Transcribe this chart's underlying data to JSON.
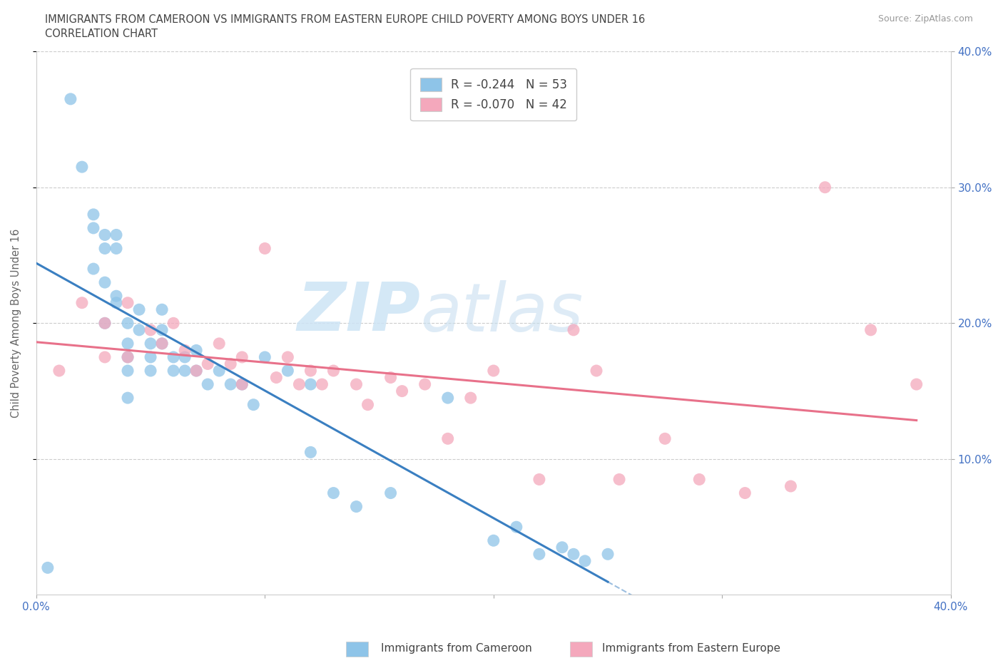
{
  "title_line1": "IMMIGRANTS FROM CAMEROON VS IMMIGRANTS FROM EASTERN EUROPE CHILD POVERTY AMONG BOYS UNDER 16",
  "title_line2": "CORRELATION CHART",
  "source": "Source: ZipAtlas.com",
  "ylabel": "Child Poverty Among Boys Under 16",
  "xlim": [
    0.0,
    0.4
  ],
  "ylim": [
    0.0,
    0.4
  ],
  "xticks": [
    0.0,
    0.1,
    0.2,
    0.3,
    0.4
  ],
  "yticks": [
    0.1,
    0.2,
    0.3,
    0.4
  ],
  "watermark_zip": "ZIP",
  "watermark_atlas": "atlas",
  "legend_R1": "-0.244",
  "legend_N1": "53",
  "legend_R2": "-0.070",
  "legend_N2": "42",
  "color_blue": "#8ec4e8",
  "color_pink": "#f4a8bc",
  "color_blue_line": "#3a7fc1",
  "color_pink_line": "#e8718a",
  "color_blue_label": "#4472c4",
  "blue_scatter_x": [
    0.005,
    0.015,
    0.02,
    0.025,
    0.025,
    0.025,
    0.03,
    0.03,
    0.03,
    0.03,
    0.035,
    0.035,
    0.035,
    0.035,
    0.04,
    0.04,
    0.04,
    0.04,
    0.04,
    0.045,
    0.045,
    0.05,
    0.05,
    0.05,
    0.055,
    0.055,
    0.055,
    0.06,
    0.06,
    0.065,
    0.065,
    0.07,
    0.07,
    0.075,
    0.08,
    0.085,
    0.09,
    0.095,
    0.1,
    0.11,
    0.12,
    0.12,
    0.13,
    0.14,
    0.155,
    0.18,
    0.2,
    0.21,
    0.22,
    0.23,
    0.235,
    0.24,
    0.25
  ],
  "blue_scatter_y": [
    0.02,
    0.365,
    0.315,
    0.28,
    0.27,
    0.24,
    0.265,
    0.255,
    0.23,
    0.2,
    0.265,
    0.255,
    0.22,
    0.215,
    0.2,
    0.185,
    0.175,
    0.145,
    0.165,
    0.21,
    0.195,
    0.185,
    0.175,
    0.165,
    0.21,
    0.195,
    0.185,
    0.175,
    0.165,
    0.175,
    0.165,
    0.18,
    0.165,
    0.155,
    0.165,
    0.155,
    0.155,
    0.14,
    0.175,
    0.165,
    0.155,
    0.105,
    0.075,
    0.065,
    0.075,
    0.145,
    0.04,
    0.05,
    0.03,
    0.035,
    0.03,
    0.025,
    0.03
  ],
  "pink_scatter_x": [
    0.01,
    0.02,
    0.03,
    0.03,
    0.04,
    0.04,
    0.05,
    0.055,
    0.06,
    0.065,
    0.07,
    0.075,
    0.08,
    0.085,
    0.09,
    0.09,
    0.1,
    0.105,
    0.11,
    0.115,
    0.12,
    0.125,
    0.13,
    0.14,
    0.145,
    0.155,
    0.16,
    0.17,
    0.18,
    0.19,
    0.2,
    0.22,
    0.235,
    0.245,
    0.255,
    0.275,
    0.29,
    0.31,
    0.33,
    0.345,
    0.365,
    0.385
  ],
  "pink_scatter_y": [
    0.165,
    0.215,
    0.2,
    0.175,
    0.215,
    0.175,
    0.195,
    0.185,
    0.2,
    0.18,
    0.165,
    0.17,
    0.185,
    0.17,
    0.175,
    0.155,
    0.255,
    0.16,
    0.175,
    0.155,
    0.165,
    0.155,
    0.165,
    0.155,
    0.14,
    0.16,
    0.15,
    0.155,
    0.115,
    0.145,
    0.165,
    0.085,
    0.195,
    0.165,
    0.085,
    0.115,
    0.085,
    0.075,
    0.08,
    0.3,
    0.195,
    0.155
  ],
  "grid_color": "#cccccc",
  "background_color": "#ffffff"
}
